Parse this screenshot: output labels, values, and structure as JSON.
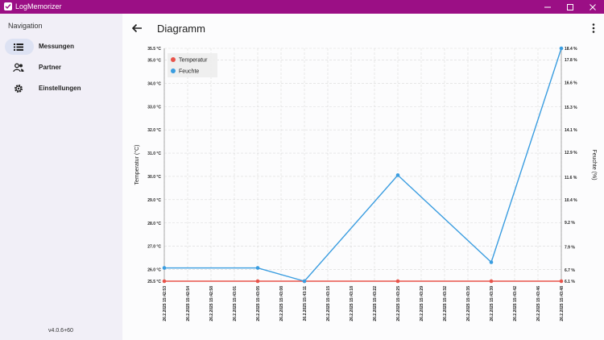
{
  "app": {
    "title": "LogMemorizer"
  },
  "sidebar": {
    "title": "Navigation",
    "items": [
      {
        "label": "Messungen",
        "icon": "list-icon",
        "active": true
      },
      {
        "label": "Partner",
        "icon": "people-icon",
        "active": false
      },
      {
        "label": "Einstellungen",
        "icon": "gear-icon",
        "active": false
      }
    ],
    "version": "v4.0.6+60"
  },
  "main": {
    "title": "Diagramm"
  },
  "colors": {
    "titlebar": "#9b0f85",
    "temperature": "#e8534a",
    "humidity": "#3a9de0"
  },
  "chart_data": {
    "type": "line",
    "legend_position": "top-left",
    "grid": true,
    "left_axis": {
      "label": "Temperatur (°C)",
      "ticks": [
        "25.5 °C",
        "26.0 °C",
        "27.0 °C",
        "28.0 °C",
        "29.0 °C",
        "30.0 °C",
        "31.0 °C",
        "32.0 °C",
        "33.0 °C",
        "34.0 °C",
        "35.0 °C",
        "35.5 °C"
      ],
      "range": [
        25.5,
        35.5
      ]
    },
    "right_axis": {
      "label": "Feuchte (%)",
      "ticks": [
        "6.1 %",
        "6.7 %",
        "7.9 %",
        "9.2 %",
        "10.4 %",
        "11.6 %",
        "12.9 %",
        "14.1 %",
        "15.3 %",
        "16.6 %",
        "17.8 %",
        "18.4 %"
      ],
      "range": [
        6.1,
        18.4
      ]
    },
    "x_ticks": [
      "26.2.2025 15:42:53",
      "26.2.2025 15:42:54",
      "26.2.2025 15:42:58",
      "26.2.2025 15:43:01",
      "26.2.2025 15:43:05",
      "26.2.2025 15:43:08",
      "26.2.2025 15:43:11",
      "26.2.2025 15:43:15",
      "26.2.2025 15:43:18",
      "26.2.2025 15:43:22",
      "26.2.2025 15:43:25",
      "26.2.2025 15:43:29",
      "26.2.2025 15:43:32",
      "26.2.2025 15:43:35",
      "26.2.2025 15:43:39",
      "26.2.2025 15:43:42",
      "26.2.2025 15:43:46",
      "26.2.2025 15:43:48"
    ],
    "series": [
      {
        "name": "Temperatur",
        "axis": "left",
        "x": [
          "26.2.2025 15:42:53",
          "26.2.2025 15:43:05",
          "26.2.2025 15:43:11",
          "26.2.2025 15:43:25",
          "26.2.2025 15:43:39",
          "26.2.2025 15:43:48"
        ],
        "values": [
          25.5,
          25.5,
          25.5,
          25.5,
          25.5,
          25.5
        ]
      },
      {
        "name": "Feuchte",
        "axis": "right",
        "x": [
          "26.2.2025 15:42:53",
          "26.2.2025 15:43:05",
          "26.2.2025 15:43:11",
          "26.2.2025 15:43:25",
          "26.2.2025 15:43:39",
          "26.2.2025 15:43:48"
        ],
        "values": [
          6.8,
          6.8,
          6.1,
          11.7,
          7.1,
          18.4
        ]
      }
    ]
  }
}
